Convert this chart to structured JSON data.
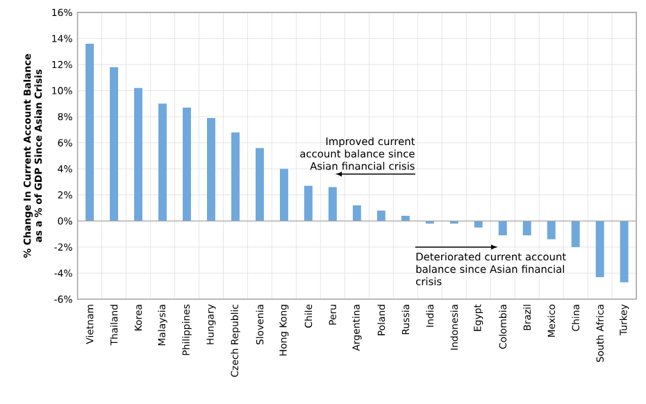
{
  "chart_data": {
    "type": "bar",
    "ylabel": "% Change In Current Account Balance as a % of GDP Since Asian Crisis",
    "categories": [
      "Vietnam",
      "Thailand",
      "Korea",
      "Malaysia",
      "Philippines",
      "Hungary",
      "Czech Republic",
      "Slovenia",
      "Hong Kong",
      "Chile",
      "Peru",
      "Argentina",
      "Poland",
      "Russia",
      "India",
      "Indonesia",
      "Egypt",
      "Colombia",
      "Brazil",
      "Mexico",
      "China",
      "South Africa",
      "Turkey"
    ],
    "values": [
      13.6,
      11.8,
      10.2,
      9.0,
      8.7,
      7.9,
      6.8,
      5.6,
      4.0,
      2.7,
      2.6,
      1.2,
      0.8,
      0.4,
      -0.2,
      -0.2,
      -0.5,
      -1.1,
      -1.1,
      -1.4,
      -2.0,
      -4.3,
      -4.7
    ],
    "color": "#6fa8dc",
    "ylim": [
      -6,
      16
    ],
    "yticks": [
      {
        "value": -6,
        "label": "-6%"
      },
      {
        "value": -4,
        "label": "-4%"
      },
      {
        "value": -2,
        "label": "-2%"
      },
      {
        "value": 0,
        "label": "0%"
      },
      {
        "value": 2,
        "label": "2%"
      },
      {
        "value": 4,
        "label": "4%"
      },
      {
        "value": 6,
        "label": "6%"
      },
      {
        "value": 8,
        "label": "8%"
      },
      {
        "value": 10,
        "label": "10%"
      },
      {
        "value": 12,
        "label": "12%"
      },
      {
        "value": 14,
        "label": "14%"
      },
      {
        "value": 16,
        "label": "16%"
      }
    ],
    "grid": true,
    "annotations": [
      "Improved current account balance since Asian financial crisis",
      "Deteriorated current account balance since Asian financial crisis"
    ]
  }
}
